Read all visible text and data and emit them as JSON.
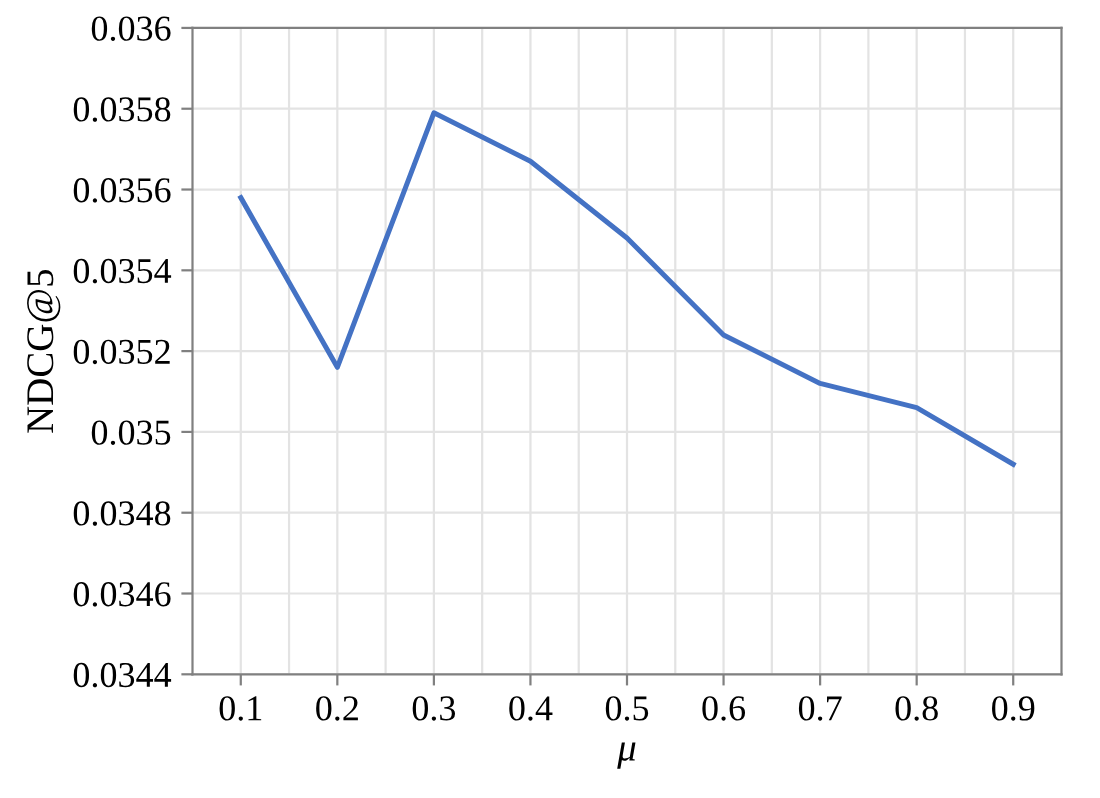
{
  "chart_data": {
    "type": "line",
    "xlabel": "μ",
    "ylabel": "NDCG@5",
    "categories": [
      "0.1",
      "0.2",
      "0.3",
      "0.4",
      "0.5",
      "0.6",
      "0.7",
      "0.8",
      "0.9"
    ],
    "series": [
      {
        "color": "#4472c4",
        "values": [
          0.03558,
          0.03516,
          0.03579,
          0.03567,
          0.03548,
          0.03524,
          0.03512,
          0.03506,
          0.03492
        ]
      }
    ],
    "ylim": [
      0.0344,
      0.036
    ],
    "yticks": [
      0.0344,
      0.0346,
      0.0348,
      0.035,
      0.0352,
      0.0354,
      0.0356,
      0.0358,
      0.036
    ],
    "grid": true,
    "marker": "none",
    "line_style": "solid",
    "legend": false
  }
}
